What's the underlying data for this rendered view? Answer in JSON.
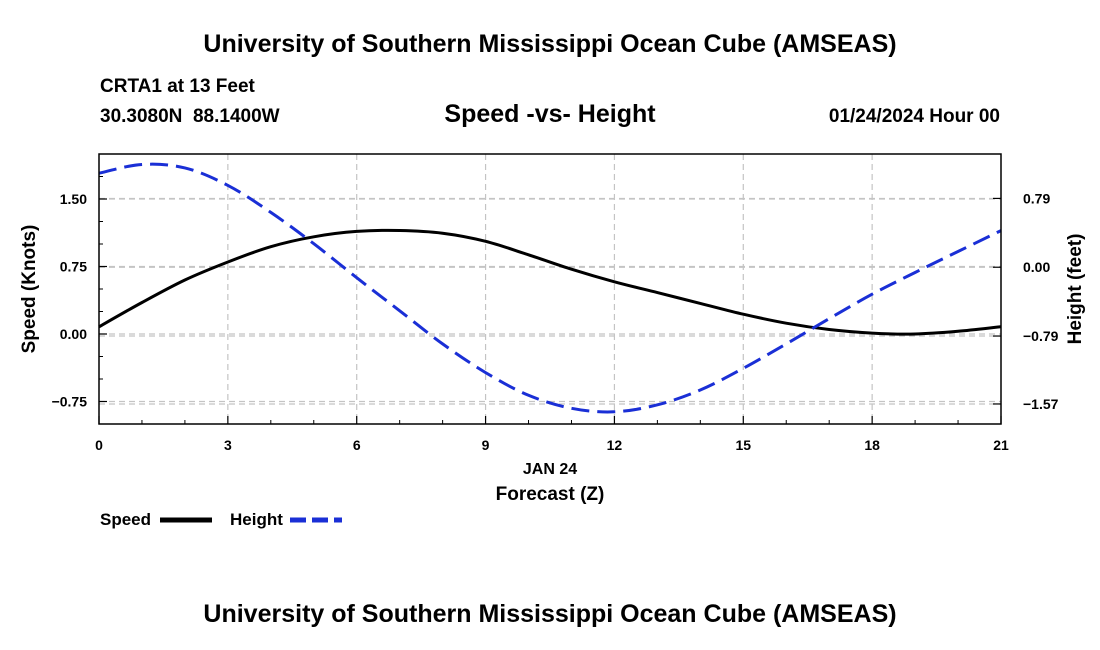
{
  "header": {
    "title": "University of Southern Mississippi Ocean Cube (AMSEAS)",
    "station": "CRTA1 at 13 Feet",
    "coords": "30.3080N  88.1400W",
    "subtitle": "Speed -vs- Height",
    "datetime": "01/24/2024 Hour 00"
  },
  "footer": {
    "title": "University of Southern Mississippi Ocean Cube (AMSEAS)"
  },
  "colors": {
    "speed": "#000000",
    "height": "#1a2fd6",
    "grid": "#c4c4c4"
  },
  "chart_data": {
    "type": "line",
    "title": "Speed -vs- Height",
    "xlabel": "Forecast (Z)",
    "x_date_label": "JAN 24",
    "ylabel_left": "Speed (Knots)",
    "ylabel_right": "Height (feet)",
    "xlim": [
      0,
      21
    ],
    "ylim_left": [
      -1.0,
      2.0
    ],
    "ylim_right": [
      -1.8,
      1.3
    ],
    "x_ticks": [
      0,
      3,
      6,
      9,
      12,
      15,
      18,
      21
    ],
    "x_tick_labels": [
      "0",
      "3",
      "6",
      "9",
      "12",
      "15",
      "18",
      "21"
    ],
    "y_left_ticks": [
      -0.75,
      0.0,
      0.75,
      1.5
    ],
    "y_left_tick_labels": [
      "−0.75",
      "0.00",
      "0.75",
      "1.50"
    ],
    "y_right_ticks": [
      -1.57,
      -0.79,
      0.0,
      0.79
    ],
    "y_right_tick_labels": [
      "−1.57",
      "−0.79",
      "0.00",
      "0.79"
    ],
    "grid": true,
    "legend": {
      "position": "bottom-left",
      "entries": [
        "Speed",
        "Height"
      ]
    },
    "series": [
      {
        "name": "Speed",
        "axis": "left",
        "style": "solid",
        "x": [
          0,
          1,
          2,
          3,
          4,
          5,
          6,
          7,
          8,
          9,
          10,
          11,
          12,
          13,
          14,
          15,
          16,
          17,
          18,
          19,
          20,
          21
        ],
        "values": [
          0.08,
          0.35,
          0.6,
          0.8,
          0.97,
          1.08,
          1.14,
          1.15,
          1.12,
          1.03,
          0.88,
          0.72,
          0.58,
          0.46,
          0.34,
          0.22,
          0.12,
          0.05,
          0.01,
          0.0,
          0.03,
          0.08
        ]
      },
      {
        "name": "Height",
        "axis": "right",
        "style": "dashed",
        "x": [
          0,
          1,
          2,
          3,
          4,
          5,
          6,
          7,
          8,
          9,
          10,
          11,
          12,
          13,
          14,
          15,
          16,
          17,
          18,
          19,
          20,
          21
        ],
        "values": [
          1.08,
          1.18,
          1.14,
          0.94,
          0.63,
          0.27,
          -0.12,
          -0.5,
          -0.88,
          -1.21,
          -1.47,
          -1.62,
          -1.66,
          -1.58,
          -1.41,
          -1.16,
          -0.88,
          -0.59,
          -0.31,
          -0.06,
          0.18,
          0.42
        ]
      }
    ]
  }
}
